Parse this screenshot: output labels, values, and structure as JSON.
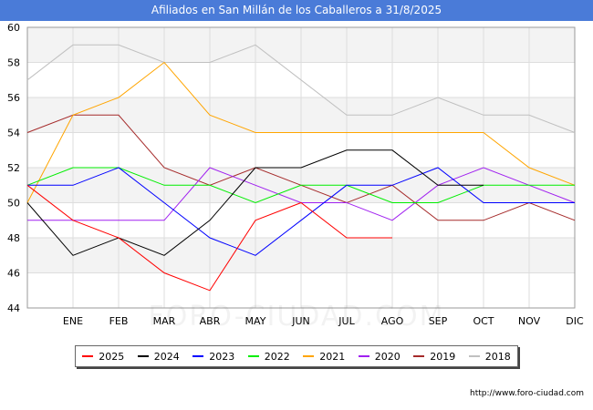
{
  "title": "Afiliados en San Millán de los Caballeros a 31/8/2025",
  "source": "http://www.foro-ciudad.com",
  "watermark": "FORO-CIUDAD.COM",
  "chart_data": {
    "type": "line",
    "title": "Afiliados en San Millán de los Caballeros a 31/8/2025",
    "categories": [
      "",
      "ENE",
      "FEB",
      "MAR",
      "ABR",
      "MAY",
      "JUN",
      "JUL",
      "AGO",
      "SEP",
      "OCT",
      "NOV",
      "DIC"
    ],
    "ylim": [
      44,
      60
    ],
    "yticks": [
      44,
      46,
      48,
      50,
      52,
      54,
      56,
      58,
      60
    ],
    "legend_position": "bottom",
    "series": [
      {
        "name": "2025",
        "color": "#ff0000",
        "values": [
          51,
          49,
          48,
          46,
          45,
          49,
          50,
          48,
          48,
          null,
          null,
          null,
          null
        ]
      },
      {
        "name": "2024",
        "color": "#000000",
        "values": [
          50,
          47,
          48,
          47,
          49,
          52,
          52,
          53,
          53,
          51,
          51,
          null,
          null
        ]
      },
      {
        "name": "2023",
        "color": "#0000ff",
        "values": [
          51,
          51,
          52,
          50,
          48,
          47,
          49,
          51,
          51,
          52,
          50,
          50,
          50
        ]
      },
      {
        "name": "2022",
        "color": "#00ee00",
        "values": [
          51,
          52,
          52,
          51,
          51,
          50,
          51,
          51,
          50,
          50,
          51,
          51,
          51
        ]
      },
      {
        "name": "2021",
        "color": "#ffa500",
        "values": [
          50,
          55,
          56,
          58,
          55,
          54,
          54,
          54,
          54,
          54,
          54,
          52,
          51
        ]
      },
      {
        "name": "2020",
        "color": "#a020f0",
        "values": [
          49,
          49,
          49,
          49,
          52,
          51,
          50,
          50,
          49,
          51,
          52,
          51,
          50
        ]
      },
      {
        "name": "2019",
        "color": "#a52a2a",
        "values": [
          54,
          55,
          55,
          52,
          51,
          52,
          51,
          50,
          51,
          49,
          49,
          50,
          49
        ]
      },
      {
        "name": "2018",
        "color": "#c0c0c0",
        "values": [
          57,
          59,
          59,
          58,
          58,
          59,
          57,
          55,
          55,
          56,
          55,
          55,
          54
        ]
      }
    ]
  }
}
